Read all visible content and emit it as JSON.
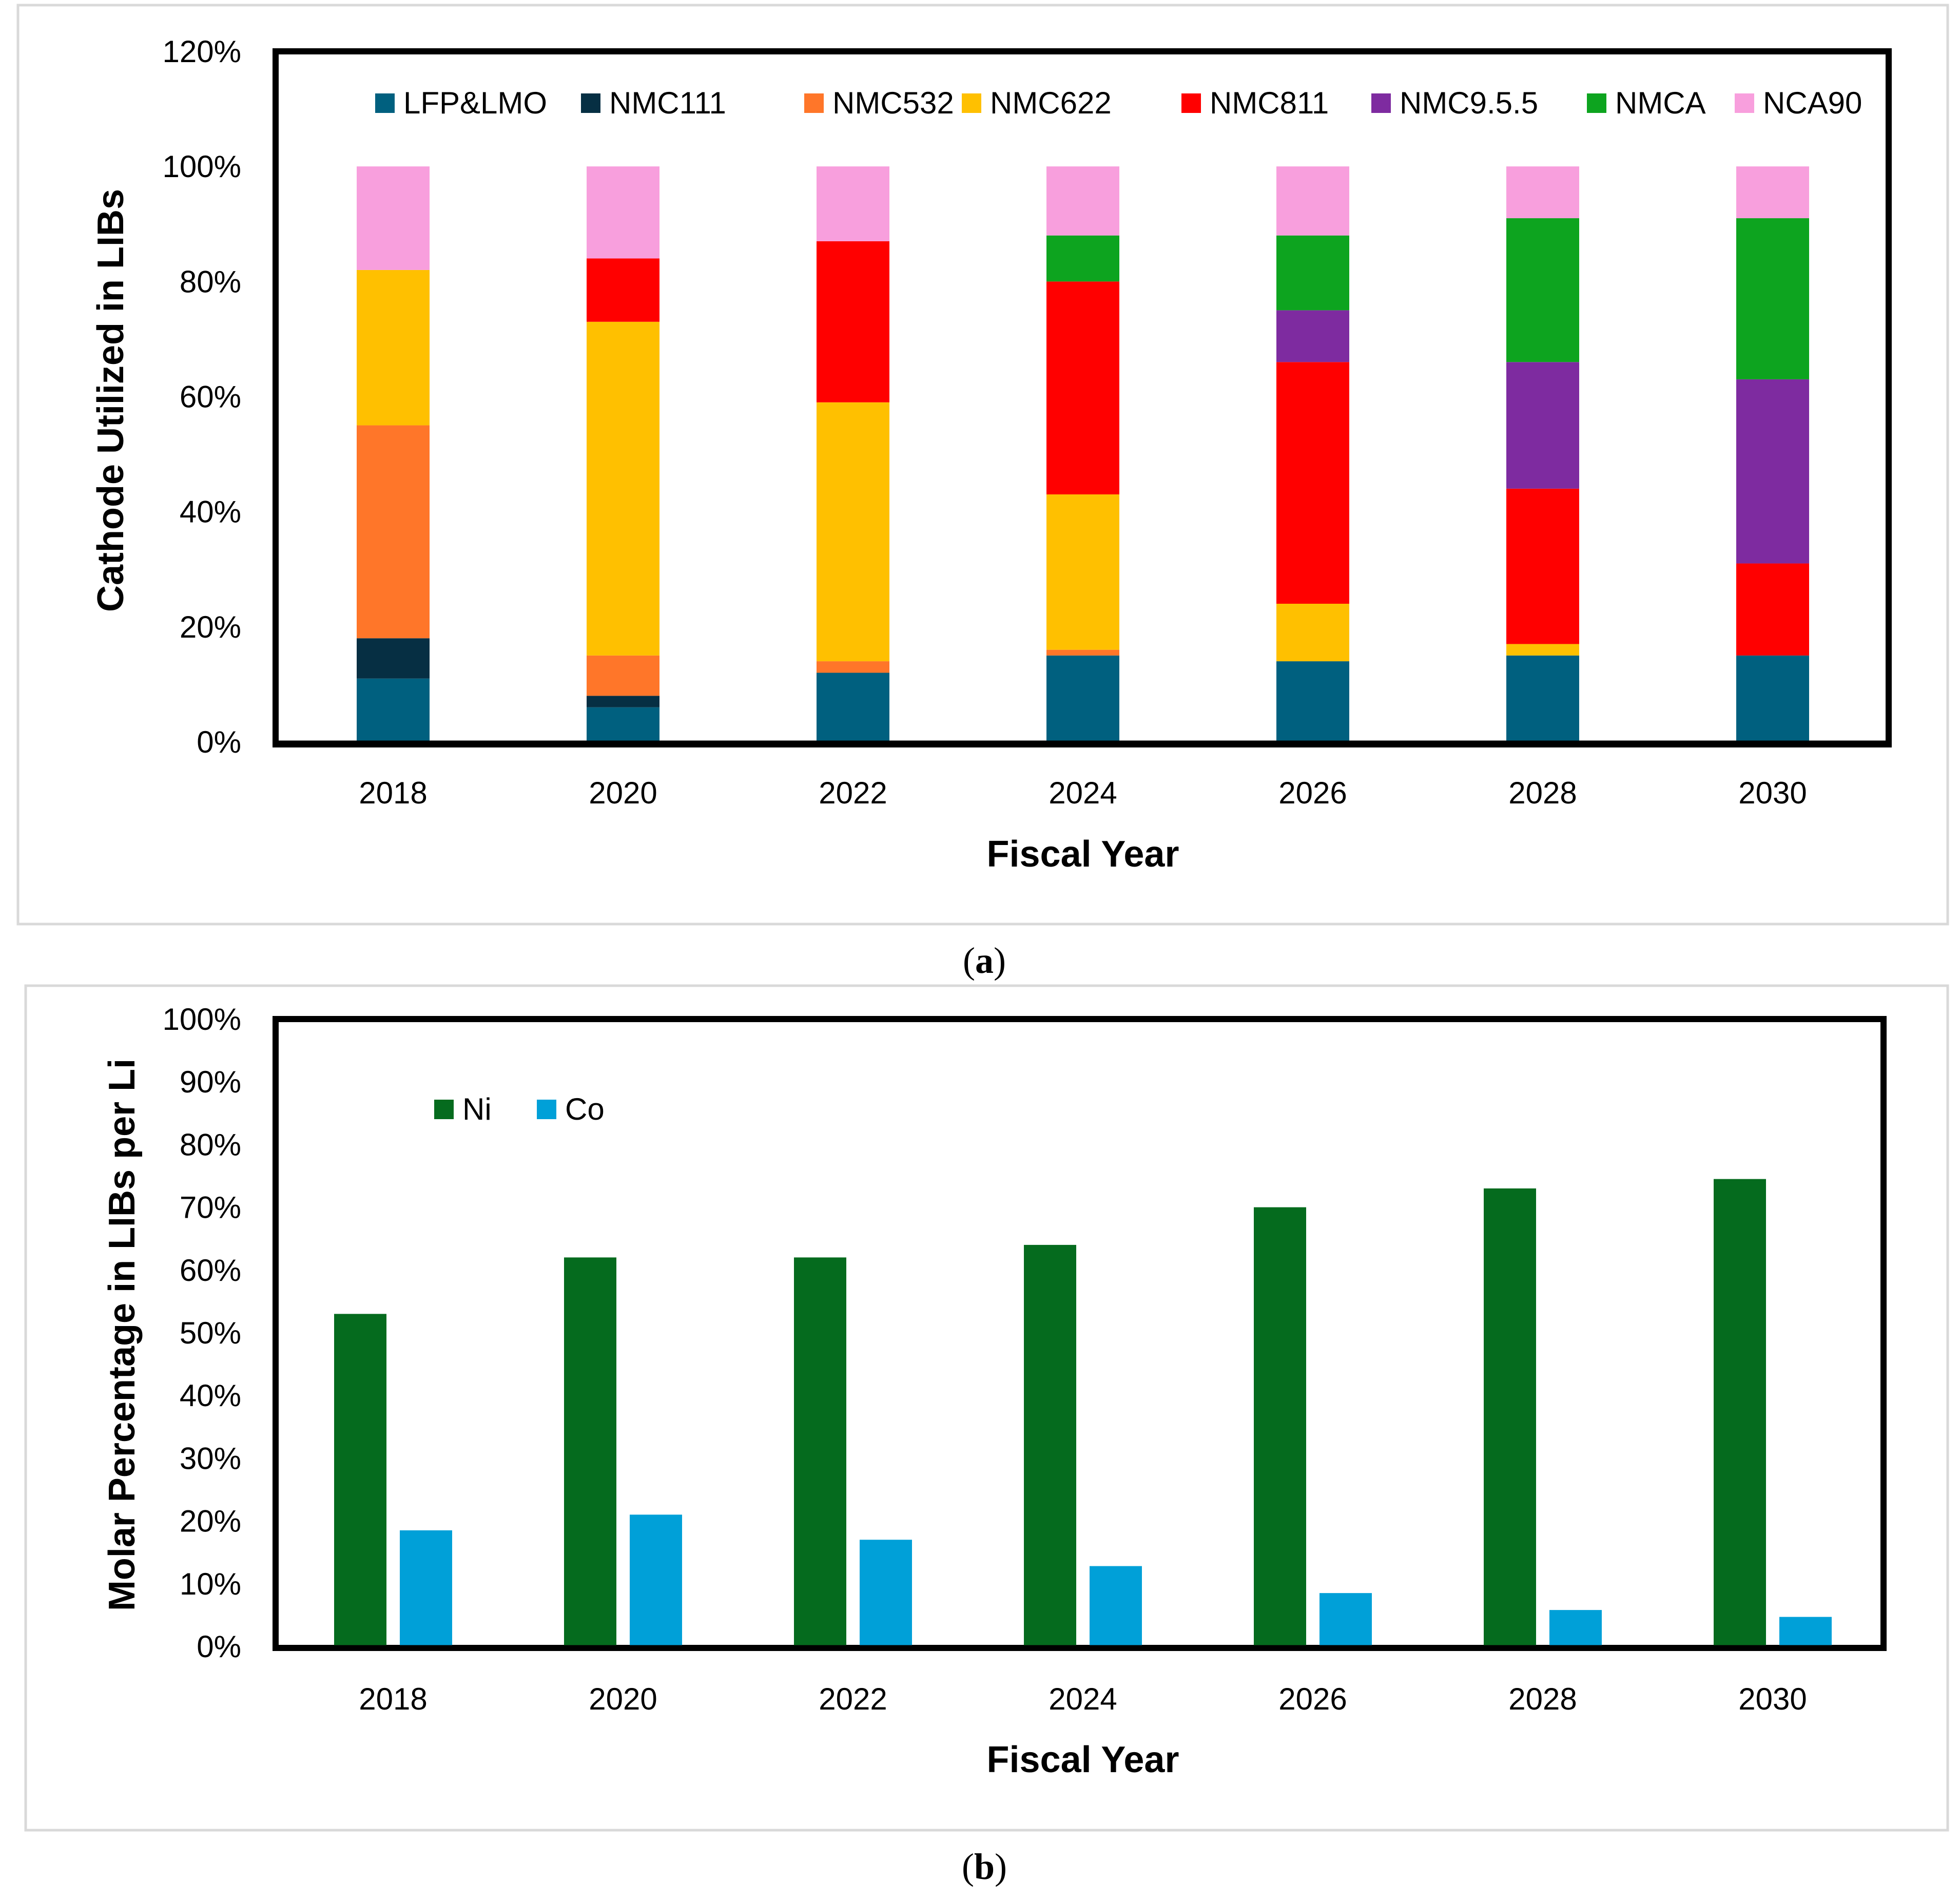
{
  "chart_data": [
    {
      "id": "a",
      "type": "stacked-bar",
      "caption": "(a)",
      "caption_letter": "a",
      "xlabel": "Fiscal Year",
      "ylabel": "Cathode Utilized  in LIBs",
      "ylim": [
        0,
        120
      ],
      "yticks": [
        "0%",
        "20%",
        "40%",
        "60%",
        "80%",
        "100%",
        "120%"
      ],
      "ytick_values": [
        0,
        20,
        40,
        60,
        80,
        100,
        120
      ],
      "grid": false,
      "legend_position": "top",
      "categories": [
        "2018",
        "2020",
        "2022",
        "2024",
        "2026",
        "2028",
        "2030"
      ],
      "series": [
        {
          "name": "LFP&LMO",
          "color": "#00607F",
          "values": [
            11,
            6,
            12,
            15,
            14,
            15,
            15
          ]
        },
        {
          "name": "NMC111",
          "color": "#062F43",
          "values": [
            7,
            2,
            0,
            0,
            0,
            0,
            0
          ]
        },
        {
          "name": "NMC532",
          "color": "#FF7629",
          "values": [
            37,
            7,
            2,
            1,
            0,
            0,
            0
          ]
        },
        {
          "name": "NMC622",
          "color": "#FFC000",
          "values": [
            27,
            58,
            45,
            27,
            10,
            2,
            0
          ]
        },
        {
          "name": "NMC811",
          "color": "#FF0000",
          "values": [
            0,
            11,
            28,
            37,
            42,
            27,
            16
          ]
        },
        {
          "name": "NMC9.5.5",
          "color": "#7E2BA0",
          "values": [
            0,
            0,
            0,
            0,
            9,
            22,
            32
          ]
        },
        {
          "name": "NMCA",
          "color": "#0DA41F",
          "values": [
            0,
            0,
            0,
            8,
            13,
            25,
            28
          ]
        },
        {
          "name": "NCA90",
          "color": "#F89FDD",
          "values": [
            18,
            16,
            13,
            12,
            12,
            9,
            9
          ]
        }
      ]
    },
    {
      "id": "b",
      "type": "bar",
      "caption": "(b)",
      "caption_letter": "b",
      "xlabel": "Fiscal Year",
      "ylabel": "Molar Percentage in LIBs per Li",
      "ylim": [
        0,
        100
      ],
      "yticks": [
        "0%",
        "10%",
        "20%",
        "30%",
        "40%",
        "50%",
        "60%",
        "70%",
        "80%",
        "90%",
        "100%"
      ],
      "ytick_values": [
        0,
        10,
        20,
        30,
        40,
        50,
        60,
        70,
        80,
        90,
        100
      ],
      "grid": false,
      "legend_position": "top-left",
      "categories": [
        "2018",
        "2020",
        "2022",
        "2024",
        "2026",
        "2028",
        "2030"
      ],
      "series": [
        {
          "name": "Ni",
          "color": "#056B1E",
          "values": [
            53,
            62,
            62,
            64,
            70,
            73,
            74.5
          ]
        },
        {
          "name": "Co",
          "color": "#00A0D8",
          "values": [
            18.5,
            21,
            17,
            12.8,
            8.5,
            5.8,
            4.7
          ]
        }
      ]
    }
  ]
}
